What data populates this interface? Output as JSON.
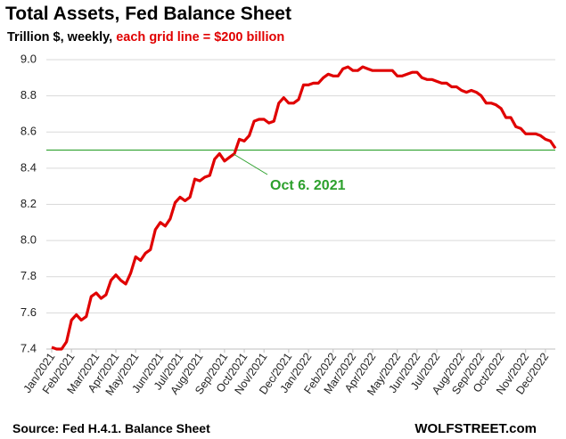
{
  "chart_data": {
    "type": "line",
    "title": "Total Assets, Fed Balance Sheet",
    "subtitle": "Trillion $, weekly, ",
    "subtitle_highlight": "each grid line = $200 billion",
    "source": "Source: Fed H.4.1. Balance Sheet",
    "brand": "WOLFSTREET.com",
    "annotation": "Oct 6. 2021",
    "reference_line": 8.5,
    "reference_color": "#2ca02c",
    "grid": true,
    "ylim": [
      7.4,
      9.0
    ],
    "yticks": [
      7.4,
      7.6,
      7.8,
      {
        "value": 8,
        "label": "8.0"
      },
      8.2,
      8.4,
      8.6,
      8.8,
      {
        "value": 9,
        "label": "9.0"
      }
    ],
    "categories": [
      "Jan/2021",
      null,
      null,
      null,
      "Feb/2021",
      null,
      null,
      null,
      null,
      "Mar/2021",
      null,
      null,
      null,
      "Apr/2021",
      null,
      null,
      null,
      "May/2021",
      null,
      null,
      null,
      null,
      "Jun/2021",
      null,
      null,
      null,
      "Jul/2021",
      null,
      null,
      null,
      "Aug/2021",
      null,
      null,
      null,
      null,
      "Sep/2021",
      null,
      null,
      null,
      "Oct/2021",
      null,
      null,
      null,
      "Nov/2021",
      null,
      null,
      null,
      null,
      "Dec/2021",
      null,
      null,
      null,
      "Jan/2022",
      null,
      null,
      null,
      null,
      "Feb/2022",
      null,
      null,
      null,
      "Mar/2022",
      null,
      null,
      null,
      "Apr/2022",
      null,
      null,
      null,
      null,
      "May/2022",
      null,
      null,
      null,
      "Jun/2022",
      null,
      null,
      null,
      "Jul/2022",
      null,
      null,
      null,
      null,
      "Aug/2022",
      null,
      null,
      null,
      "Sep/2022",
      null,
      null,
      null,
      "Oct/2022",
      null,
      null,
      null,
      null,
      "Nov/2022",
      null,
      null,
      null,
      "Dec/2022",
      null,
      null
    ],
    "series": [
      {
        "name": "Total Assets",
        "color": "#e00000",
        "values": [
          7.41,
          7.4,
          7.4,
          7.44,
          7.56,
          7.59,
          7.56,
          7.58,
          7.69,
          7.71,
          7.68,
          7.7,
          7.78,
          7.81,
          7.78,
          7.76,
          7.82,
          7.91,
          7.89,
          7.93,
          7.95,
          8.06,
          8.1,
          8.08,
          8.12,
          8.21,
          8.24,
          8.22,
          8.24,
          8.34,
          8.33,
          8.35,
          8.36,
          8.45,
          8.48,
          8.44,
          8.46,
          8.48,
          8.56,
          8.55,
          8.58,
          8.66,
          8.67,
          8.67,
          8.65,
          8.66,
          8.76,
          8.79,
          8.76,
          8.76,
          8.78,
          8.86,
          8.86,
          8.87,
          8.87,
          8.9,
          8.92,
          8.91,
          8.91,
          8.95,
          8.96,
          8.94,
          8.94,
          8.96,
          8.95,
          8.94,
          8.94,
          8.94,
          8.94,
          8.94,
          8.91,
          8.91,
          8.92,
          8.93,
          8.93,
          8.9,
          8.89,
          8.89,
          8.88,
          8.87,
          8.87,
          8.85,
          8.85,
          8.83,
          8.82,
          8.83,
          8.82,
          8.8,
          8.76,
          8.76,
          8.75,
          8.73,
          8.68,
          8.68,
          8.63,
          8.62,
          8.59,
          8.59,
          8.59,
          8.58,
          8.56,
          8.55,
          8.51
        ]
      }
    ]
  }
}
